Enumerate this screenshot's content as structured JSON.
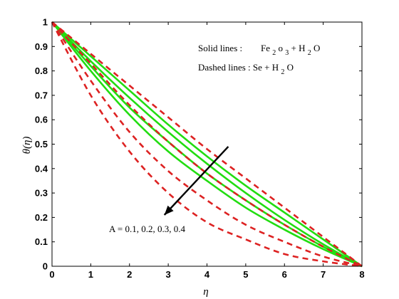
{
  "chart_data": {
    "type": "line",
    "title": "",
    "xlabel": "η",
    "ylabel": "θ(η)",
    "xlim": [
      0,
      8
    ],
    "ylim": [
      0,
      1
    ],
    "xticks": [
      "0",
      "1",
      "2",
      "3",
      "4",
      "5",
      "6",
      "7",
      "8"
    ],
    "yticks": [
      "0",
      "0.1",
      "0.2",
      "0.3",
      "0.4",
      "0.5",
      "0.6",
      "0.7",
      "0.8",
      "0.9",
      "1"
    ],
    "grid": false,
    "legend_text": {
      "solid_prefix": "Solid lines :",
      "solid_formula_parts": [
        "Fe",
        "2",
        "o",
        "3",
        " + H",
        "2",
        "O"
      ],
      "dashed_prefix": "Dashed lines : Se + H",
      "dashed_sub": "2",
      "dashed_suffix": "O"
    },
    "annotation": "A = 0.1, 0.2, 0.3, 0.4",
    "arrow": {
      "from": [
        4.55,
        0.49
      ],
      "to": [
        2.9,
        0.21
      ]
    },
    "series": [
      {
        "style": "solid",
        "color": "#22dd11",
        "A": "0.1",
        "x": [
          0,
          1,
          2,
          3,
          4,
          5,
          6,
          7,
          8
        ],
        "y": [
          1,
          0.86,
          0.72,
          0.58,
          0.45,
          0.33,
          0.22,
          0.11,
          0
        ]
      },
      {
        "style": "solid",
        "color": "#22dd11",
        "A": "0.2",
        "x": [
          0,
          1,
          2,
          3,
          4,
          5,
          6,
          7,
          8
        ],
        "y": [
          1,
          0.84,
          0.69,
          0.55,
          0.42,
          0.3,
          0.19,
          0.09,
          0
        ]
      },
      {
        "style": "solid",
        "color": "#22dd11",
        "A": "0.3",
        "x": [
          0,
          1,
          2,
          3,
          4,
          5,
          6,
          7,
          8
        ],
        "y": [
          1,
          0.82,
          0.65,
          0.51,
          0.38,
          0.27,
          0.17,
          0.08,
          0
        ]
      },
      {
        "style": "solid",
        "color": "#22dd11",
        "A": "0.4",
        "x": [
          0,
          1,
          2,
          3,
          4,
          5,
          6,
          7,
          8
        ],
        "y": [
          1,
          0.8,
          0.62,
          0.47,
          0.35,
          0.24,
          0.15,
          0.07,
          0
        ]
      },
      {
        "style": "dashed",
        "color": "#dd2222",
        "A": "0.1",
        "x": [
          0,
          1,
          2,
          3,
          4,
          5,
          6,
          7,
          8
        ],
        "y": [
          1,
          0.87,
          0.74,
          0.61,
          0.48,
          0.36,
          0.24,
          0.12,
          0
        ]
      },
      {
        "style": "dashed",
        "color": "#dd2222",
        "A": "0.2",
        "x": [
          0,
          1,
          2,
          3,
          4,
          5,
          6,
          7,
          8
        ],
        "y": [
          1,
          0.83,
          0.66,
          0.51,
          0.38,
          0.27,
          0.17,
          0.08,
          0
        ]
      },
      {
        "style": "dashed",
        "color": "#dd2222",
        "A": "0.3",
        "x": [
          0,
          1,
          2,
          3,
          4,
          5,
          6,
          7,
          8
        ],
        "y": [
          1,
          0.76,
          0.55,
          0.39,
          0.27,
          0.17,
          0.1,
          0.04,
          0
        ]
      },
      {
        "style": "dashed",
        "color": "#dd2222",
        "A": "0.4",
        "x": [
          0,
          1,
          2,
          3,
          4,
          5,
          6,
          7,
          8
        ],
        "y": [
          1,
          0.7,
          0.47,
          0.3,
          0.18,
          0.11,
          0.05,
          0.02,
          0
        ]
      }
    ]
  }
}
